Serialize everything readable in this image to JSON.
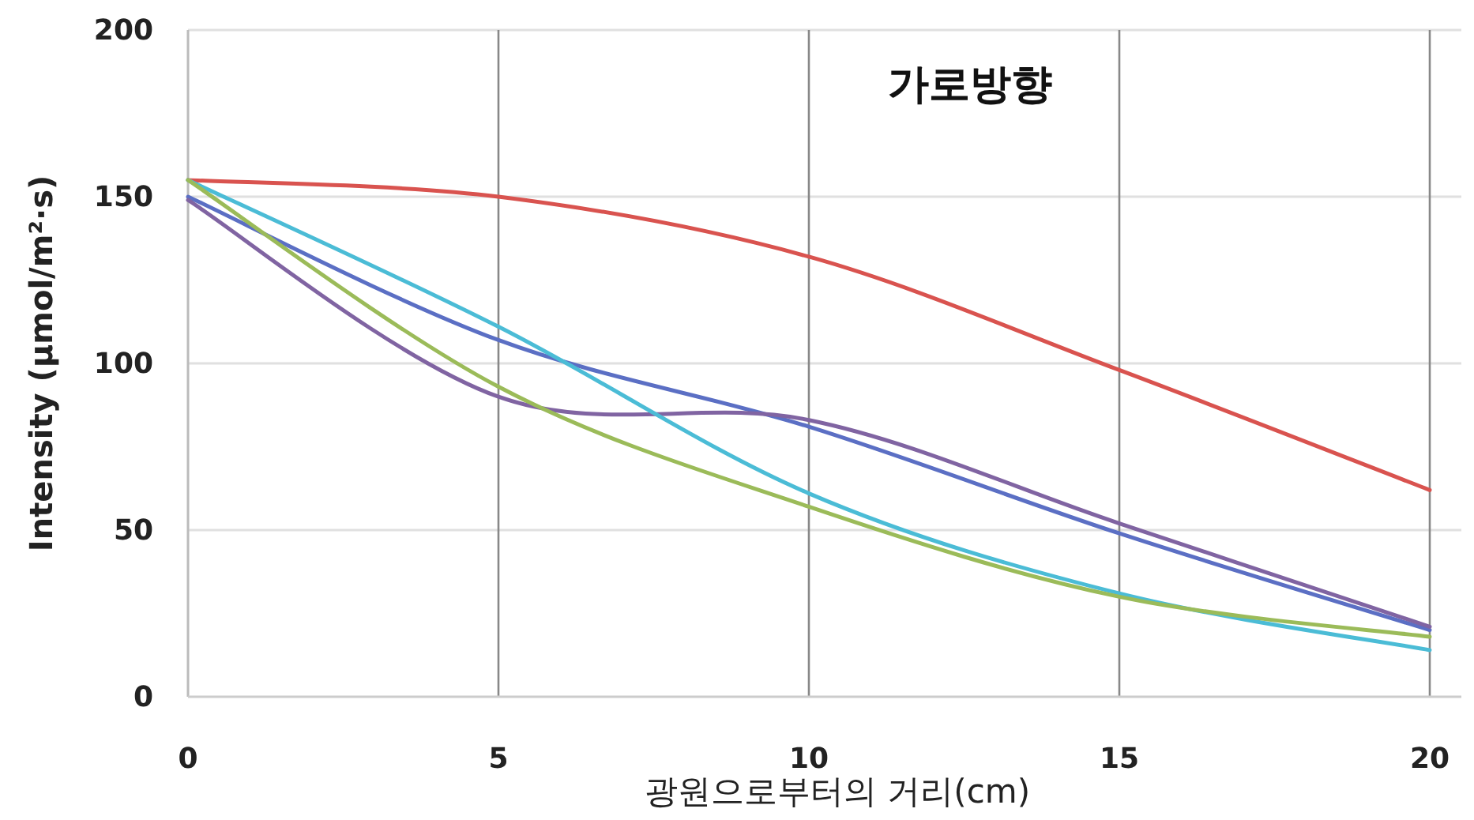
{
  "chart_data": {
    "type": "line",
    "title": "가로방향",
    "xlabel": "광원으로부터의 거리(cm)",
    "ylabel": "Intensity (μmol/m²·s)",
    "x": [
      0,
      5,
      10,
      15,
      20
    ],
    "series": [
      {
        "color": "#d9534f",
        "values": [
          155,
          150,
          132,
          98,
          62
        ]
      },
      {
        "color": "#5b6fc4",
        "values": [
          150,
          107,
          81,
          49,
          20
        ]
      },
      {
        "color": "#8064a2",
        "values": [
          149,
          90,
          83,
          52,
          21
        ]
      },
      {
        "color": "#4bbcd6",
        "values": [
          155,
          111,
          61,
          31,
          14
        ]
      },
      {
        "color": "#9bbb59",
        "values": [
          155,
          93,
          57,
          30,
          18
        ]
      }
    ],
    "xlim": [
      0,
      20
    ],
    "xticks": [
      0,
      5,
      10,
      15,
      20
    ],
    "ylim": [
      0,
      200
    ],
    "yticks": [
      0,
      50,
      100,
      150,
      200
    ],
    "grid": true,
    "marker": "none",
    "line_style": "solid"
  }
}
